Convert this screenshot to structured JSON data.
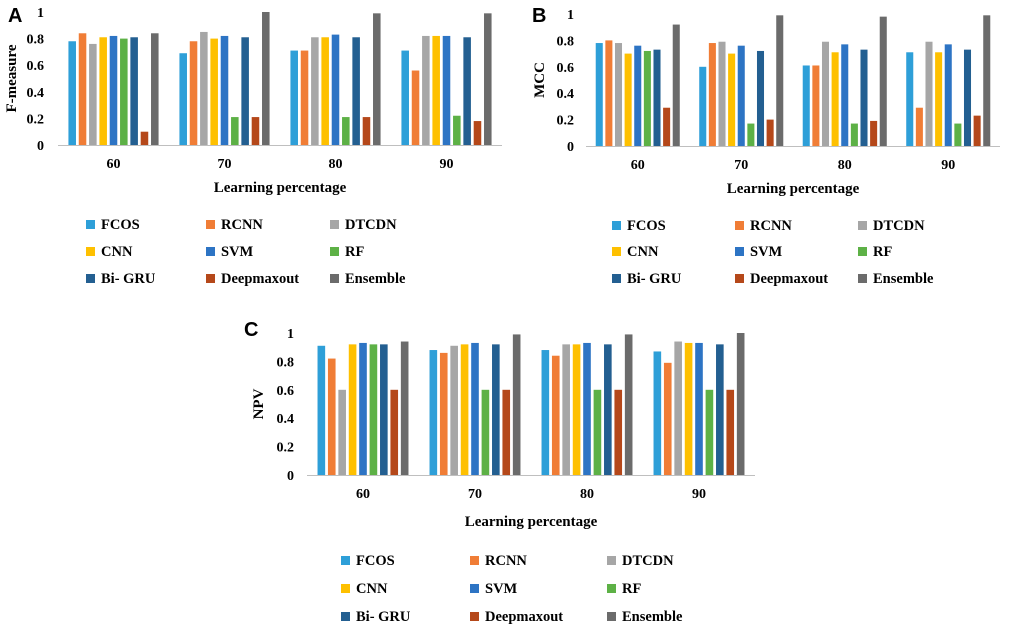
{
  "chart_data": [
    {
      "panel": "A",
      "type": "bar",
      "title": "",
      "xlabel": "Learning percentage",
      "ylabel": "F-measure",
      "ylim": [
        0,
        1
      ],
      "yticks": [
        "0",
        "0.2",
        "0.4",
        "0.6",
        "0.8",
        "1"
      ],
      "categories": [
        "60",
        "70",
        "80",
        "90"
      ],
      "series": [
        {
          "name": "FCOS",
          "values": [
            0.78,
            0.69,
            0.71,
            0.71
          ]
        },
        {
          "name": "RCNN",
          "values": [
            0.84,
            0.78,
            0.71,
            0.56
          ]
        },
        {
          "name": "DTCDN",
          "values": [
            0.76,
            0.85,
            0.81,
            0.82
          ]
        },
        {
          "name": "CNN",
          "values": [
            0.81,
            0.8,
            0.81,
            0.82
          ]
        },
        {
          "name": "SVM",
          "values": [
            0.82,
            0.82,
            0.83,
            0.82
          ]
        },
        {
          "name": "RF",
          "values": [
            0.8,
            0.21,
            0.21,
            0.22
          ]
        },
        {
          "name": "Bi- GRU",
          "values": [
            0.81,
            0.81,
            0.81,
            0.81
          ]
        },
        {
          "name": "Deepmaxout",
          "values": [
            0.1,
            0.21,
            0.21,
            0.18
          ]
        },
        {
          "name": "Ensemble",
          "values": [
            0.84,
            1.0,
            0.99,
            0.99
          ]
        }
      ]
    },
    {
      "panel": "B",
      "type": "bar",
      "title": "",
      "xlabel": "Learning percentage",
      "ylabel": "MCC",
      "ylim": [
        0,
        1
      ],
      "yticks": [
        "0",
        "0.2",
        "0.4",
        "0.6",
        "0.8",
        "1"
      ],
      "categories": [
        "60",
        "70",
        "80",
        "90"
      ],
      "series": [
        {
          "name": "FCOS",
          "values": [
            0.78,
            0.6,
            0.61,
            0.71
          ]
        },
        {
          "name": "RCNN",
          "values": [
            0.8,
            0.78,
            0.61,
            0.29
          ]
        },
        {
          "name": "DTCDN",
          "values": [
            0.78,
            0.79,
            0.79,
            0.79
          ]
        },
        {
          "name": "CNN",
          "values": [
            0.7,
            0.7,
            0.71,
            0.71
          ]
        },
        {
          "name": "SVM",
          "values": [
            0.76,
            0.76,
            0.77,
            0.77
          ]
        },
        {
          "name": "RF",
          "values": [
            0.72,
            0.17,
            0.17,
            0.17
          ]
        },
        {
          "name": "Bi- GRU",
          "values": [
            0.73,
            0.72,
            0.73,
            0.73
          ]
        },
        {
          "name": "Deepmaxout",
          "values": [
            0.29,
            0.2,
            0.19,
            0.23
          ]
        },
        {
          "name": "Ensemble",
          "values": [
            0.92,
            0.99,
            0.98,
            0.99
          ]
        }
      ]
    },
    {
      "panel": "C",
      "type": "bar",
      "title": "",
      "xlabel": "Learning percentage",
      "ylabel": "NPV",
      "ylim": [
        0,
        1
      ],
      "yticks": [
        "0",
        "0.2",
        "0.4",
        "0.6",
        "0.8",
        "1"
      ],
      "categories": [
        "60",
        "70",
        "80",
        "90"
      ],
      "series": [
        {
          "name": "FCOS",
          "values": [
            0.91,
            0.88,
            0.88,
            0.87
          ]
        },
        {
          "name": "RCNN",
          "values": [
            0.82,
            0.86,
            0.84,
            0.79
          ]
        },
        {
          "name": "DTCDN",
          "values": [
            0.6,
            0.91,
            0.92,
            0.94
          ]
        },
        {
          "name": "CNN",
          "values": [
            0.92,
            0.92,
            0.92,
            0.93
          ]
        },
        {
          "name": "SVM",
          "values": [
            0.93,
            0.93,
            0.93,
            0.93
          ]
        },
        {
          "name": "RF",
          "values": [
            0.92,
            0.6,
            0.6,
            0.6
          ]
        },
        {
          "name": "Bi- GRU",
          "values": [
            0.92,
            0.92,
            0.92,
            0.92
          ]
        },
        {
          "name": "Deepmaxout",
          "values": [
            0.6,
            0.6,
            0.6,
            0.6
          ]
        },
        {
          "name": "Ensemble",
          "values": [
            0.94,
            0.99,
            0.99,
            1.0
          ]
        }
      ]
    }
  ],
  "series_colors": [
    "#2e9fd8",
    "#f07d36",
    "#a6a6a6",
    "#fec000",
    "#2d74c4",
    "#5db146",
    "#235f91",
    "#b5481a",
    "#6b6b6b"
  ],
  "panel_labels": [
    "A",
    "B",
    "C"
  ]
}
